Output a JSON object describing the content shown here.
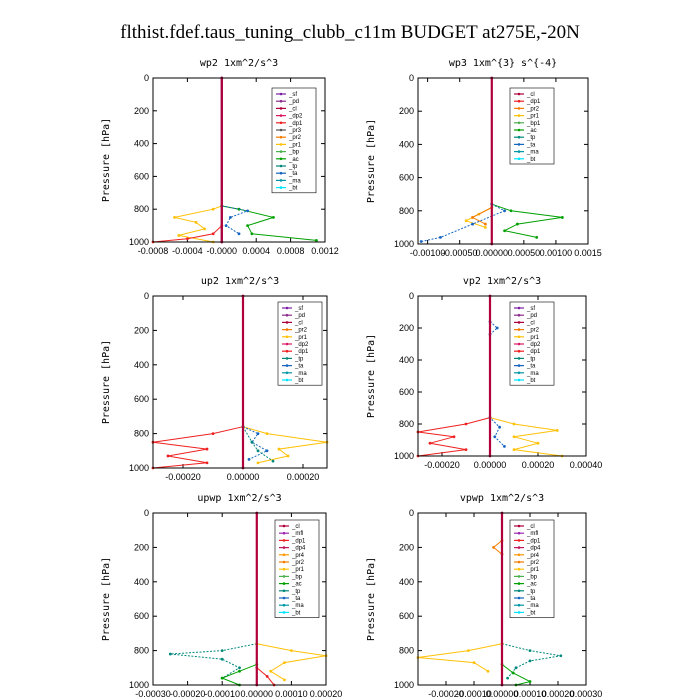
{
  "title": "flthist.fdef.taus_tuning_clubb_c11m  BUDGET at275E,-20N",
  "colors": {
    "sf": "#7b1fa2",
    "pd": "#8e2b8e",
    "cl": "#b0003a",
    "dp2": "#d81b60",
    "dp1": "#ef2020",
    "pr2": "#f57c00",
    "pr1": "#ffc107",
    "bp": "#4caf50",
    "ac": "#00a000",
    "tp": "#00897b",
    "ta": "#1565c0",
    "ma": "#0097a7",
    "bt": "#00e5ff",
    "mfl": "#9c27b0",
    "dp4": "#c2185b",
    "pr4": "#ff9800"
  },
  "chart_data": [
    {
      "type": "line",
      "title": "wp2   1xm^2/s^3",
      "ylabel": "Pressure [hPa]",
      "ylim": [
        1000,
        0
      ],
      "xlim": [
        -0.0008,
        0.0012
      ],
      "xticks": [
        "-0.0008",
        "-0.0004",
        "-0.0000",
        "0.0004",
        "0.0008",
        "0.0012"
      ],
      "yticks": [
        "0",
        "200",
        "400",
        "600",
        "800",
        "1000"
      ],
      "legend": [
        "_sf",
        "_pd",
        "_cl",
        "_dp2",
        "_dp1",
        "_pr3",
        "_pr2",
        "_pr1",
        "_bp",
        "_ac",
        "_tp",
        "_ta",
        "_ma",
        "_bt"
      ],
      "series": [
        {
          "key": "sf",
          "points": [
            [
              0,
              0
            ],
            [
              0,
              1000
            ]
          ]
        },
        {
          "key": "pr1",
          "points": [
            [
              0,
              780
            ],
            [
              -0.0001,
              800
            ],
            [
              -0.00055,
              850
            ],
            [
              -0.0003,
              880
            ],
            [
              -0.0002,
              920
            ],
            [
              -0.0005,
              960
            ],
            [
              -0.0001,
              1000
            ]
          ]
        },
        {
          "key": "ac",
          "points": [
            [
              0,
              780
            ],
            [
              0.0002,
              800
            ],
            [
              0.0006,
              850
            ],
            [
              0.0003,
              900
            ],
            [
              0.00035,
              950
            ],
            [
              0.0011,
              990
            ]
          ]
        },
        {
          "key": "ta",
          "points": [
            [
              0,
              780
            ],
            [
              0.0003,
              810
            ],
            [
              0.0001,
              850
            ],
            [
              5e-05,
              900
            ],
            [
              0.0002,
              950
            ]
          ]
        },
        {
          "key": "dp1",
          "points": [
            [
              0,
              900
            ],
            [
              -0.0001,
              950
            ],
            [
              -0.0004,
              980
            ],
            [
              -0.0008,
              1000
            ]
          ]
        },
        {
          "key": "cl",
          "points": [
            [
              0,
              0
            ],
            [
              0,
              1000
            ]
          ]
        }
      ]
    },
    {
      "type": "line",
      "title": "wp3   1xm^{3} s^{-4}",
      "ylabel": "Pressure [hPa]",
      "ylim": [
        1000,
        0
      ],
      "xlim": [
        -0.00115,
        0.0015
      ],
      "xticks": [
        "-0.00100",
        "-0.00050",
        "0.00000",
        "0.00050",
        "0.00100",
        "0.0015"
      ],
      "yticks": [
        "0",
        "200",
        "400",
        "600",
        "800",
        "1000"
      ],
      "legend": [
        "_cl",
        "_dp1",
        "_pr2",
        "_pr1",
        "_bp1",
        "_ac",
        "_tp",
        "_ta",
        "_ma",
        "_bt"
      ],
      "series": [
        {
          "key": "ac",
          "points": [
            [
              0,
              760
            ],
            [
              0.0003,
              800
            ],
            [
              0.0011,
              840
            ],
            [
              0.0004,
              880
            ],
            [
              0.0002,
              920
            ],
            [
              0.0007,
              960
            ]
          ]
        },
        {
          "key": "pr1",
          "points": [
            [
              0,
              780
            ],
            [
              -0.0002,
              820
            ],
            [
              -0.0004,
              860
            ],
            [
              -0.0001,
              900
            ]
          ]
        },
        {
          "key": "ta",
          "points": [
            [
              0,
              760
            ],
            [
              0.0002,
              800
            ],
            [
              -0.0003,
              880
            ],
            [
              -0.0008,
              960
            ],
            [
              -0.0011,
              985
            ]
          ]
        },
        {
          "key": "pr2",
          "points": [
            [
              0,
              780
            ],
            [
              -0.0003,
              840
            ],
            [
              -0.0001,
              880
            ]
          ]
        },
        {
          "key": "cl",
          "points": [
            [
              0,
              0
            ],
            [
              0,
              1000
            ]
          ]
        }
      ]
    },
    {
      "type": "line",
      "title": "up2   1xm^2/s^3",
      "ylabel": "Pressure [hPa]",
      "ylim": [
        1000,
        0
      ],
      "xlim": [
        -0.0003,
        0.00028
      ],
      "xticks": [
        "-0.00020",
        "0.00000",
        "0.00020"
      ],
      "yticks": [
        "0",
        "200",
        "400",
        "600",
        "800",
        "1000"
      ],
      "legend": [
        "_sf",
        "_pd",
        "_cl",
        "_pr2",
        "_pr1",
        "_dp2",
        "_dp1",
        "_tp",
        "_ta",
        "_ma",
        "_bt"
      ],
      "series": [
        {
          "key": "dp1",
          "points": [
            [
              0,
              760
            ],
            [
              -0.0001,
              800
            ],
            [
              -0.0003,
              850
            ],
            [
              -0.00012,
              890
            ],
            [
              -0.00025,
              930
            ],
            [
              -0.00012,
              970
            ],
            [
              -0.0003,
              1000
            ]
          ]
        },
        {
          "key": "pr1",
          "points": [
            [
              0,
              760
            ],
            [
              8e-05,
              800
            ],
            [
              0.00028,
              850
            ],
            [
              0.00012,
              890
            ],
            [
              0.00015,
              930
            ],
            [
              5e-05,
              970
            ]
          ]
        },
        {
          "key": "ta",
          "points": [
            [
              0,
              760
            ],
            [
              5e-05,
              800
            ],
            [
              3e-05,
              850
            ],
            [
              8e-05,
              900
            ],
            [
              2e-05,
              950
            ]
          ]
        },
        {
          "key": "tp",
          "points": [
            [
              0,
              760
            ],
            [
              3e-05,
              850
            ],
            [
              5e-05,
              900
            ],
            [
              0.0001,
              960
            ]
          ]
        },
        {
          "key": "cl",
          "points": [
            [
              0,
              0
            ],
            [
              0,
              1000
            ]
          ]
        }
      ]
    },
    {
      "type": "line",
      "title": "vp2   1xm^2/s^3",
      "ylabel": "Pressure [hPa]",
      "ylim": [
        1000,
        0
      ],
      "xlim": [
        -0.0003,
        0.0004
      ],
      "xticks": [
        "-0.00020",
        "0.00000",
        "0.00020",
        "0.00040"
      ],
      "yticks": [
        "0",
        "200",
        "400",
        "600",
        "800",
        "1000"
      ],
      "legend": [
        "_sf",
        "_pd",
        "_cl",
        "_pr2",
        "_pr1",
        "_dp2",
        "_dp1",
        "_tp",
        "_ta",
        "_ma",
        "_bt"
      ],
      "series": [
        {
          "key": "dp1",
          "points": [
            [
              0,
              760
            ],
            [
              -0.0001,
              800
            ],
            [
              -0.0003,
              850
            ],
            [
              -0.00015,
              880
            ],
            [
              -0.00025,
              920
            ],
            [
              -0.0001,
              960
            ],
            [
              -0.0003,
              1000
            ]
          ]
        },
        {
          "key": "pr1",
          "points": [
            [
              0,
              760
            ],
            [
              0.0001,
              800
            ],
            [
              0.00028,
              840
            ],
            [
              0.0001,
              880
            ],
            [
              0.0002,
              920
            ],
            [
              0.0001,
              960
            ],
            [
              0.0003,
              1000
            ]
          ]
        },
        {
          "key": "ta",
          "points": [
            [
              0,
              160
            ],
            [
              3e-05,
              200
            ],
            [
              0,
              240
            ],
            [
              0,
              760
            ],
            [
              4e-05,
              820
            ],
            [
              2e-05,
              880
            ],
            [
              6e-05,
              940
            ]
          ]
        },
        {
          "key": "cl",
          "points": [
            [
              0,
              0
            ],
            [
              0,
              1000
            ]
          ]
        }
      ]
    },
    {
      "type": "line",
      "title": "upwp   1xm^2/s^3",
      "ylabel": "Pressure [hPa]",
      "ylim": [
        1000,
        0
      ],
      "xlim": [
        -0.0003,
        0.0002
      ],
      "xticks": [
        "-0.00030",
        "-0.00020",
        "-0.00010",
        "0.00000",
        "0.00010",
        "0.00020"
      ],
      "yticks": [
        "0",
        "200",
        "400",
        "600",
        "800",
        "1000"
      ],
      "legend": [
        "_cl",
        "_mfl",
        "_dp1",
        "_dp4",
        "_pr4",
        "_pr2",
        "_pr1",
        "_bp",
        "_ac",
        "_tp",
        "_ta",
        "_ma",
        "_bt"
      ],
      "series": [
        {
          "key": "tp",
          "points": [
            [
              0,
              760
            ],
            [
              -0.0001,
              800
            ],
            [
              -0.00025,
              820
            ],
            [
              -0.0001,
              850
            ],
            [
              -5e-05,
              900
            ],
            [
              -0.0001,
              960
            ]
          ]
        },
        {
          "key": "pr1",
          "points": [
            [
              0,
              760
            ],
            [
              0.0001,
              800
            ],
            [
              0.0002,
              830
            ],
            [
              8e-05,
              870
            ],
            [
              4e-05,
              920
            ],
            [
              8e-05,
              970
            ]
          ]
        },
        {
          "key": "ac",
          "points": [
            [
              0,
              880
            ],
            [
              -5e-05,
              920
            ],
            [
              -0.0001,
              960
            ],
            [
              -5e-05,
              1000
            ]
          ]
        },
        {
          "key": "dp1",
          "points": [
            [
              0,
              900
            ],
            [
              3e-05,
              950
            ],
            [
              5e-05,
              1000
            ]
          ]
        },
        {
          "key": "cl",
          "points": [
            [
              0,
              0
            ],
            [
              0,
              1000
            ]
          ]
        }
      ]
    },
    {
      "type": "line",
      "title": "vpwp   1xm^2/s^3",
      "ylabel": "Pressure [hPa]",
      "ylim": [
        1000,
        0
      ],
      "xlim": [
        -0.0003,
        0.0003
      ],
      "xticks": [
        "-0.00020",
        "-0.00010",
        "0.00000",
        "0.00010",
        "0.00020",
        "0.00030"
      ],
      "yticks": [
        "0",
        "200",
        "400",
        "600",
        "800",
        "1000"
      ],
      "legend": [
        "_cl",
        "_mfl",
        "_dp1",
        "_dp4",
        "_pr4",
        "_pr2",
        "_pr1",
        "_bp",
        "_ac",
        "_tp",
        "_ta",
        "_ma",
        "_bt"
      ],
      "series": [
        {
          "key": "tp",
          "points": [
            [
              0,
              760
            ],
            [
              0.0001,
              800
            ],
            [
              0.00021,
              830
            ],
            [
              0.0001,
              860
            ],
            [
              5e-05,
              900
            ],
            [
              2e-05,
              960
            ]
          ]
        },
        {
          "key": "pr1",
          "points": [
            [
              0,
              760
            ],
            [
              -0.00012,
              800
            ],
            [
              -0.0003,
              840
            ],
            [
              -0.0001,
              870
            ],
            [
              -5e-05,
              920
            ]
          ]
        },
        {
          "key": "pr2",
          "points": [
            [
              0,
              160
            ],
            [
              -3e-05,
              200
            ],
            [
              0,
              240
            ]
          ]
        },
        {
          "key": "ac",
          "points": [
            [
              0,
              880
            ],
            [
              4e-05,
              930
            ],
            [
              0.0001,
              980
            ],
            [
              5e-05,
              1000
            ]
          ]
        },
        {
          "key": "cl",
          "points": [
            [
              0,
              0
            ],
            [
              0,
              1000
            ]
          ]
        }
      ]
    }
  ]
}
